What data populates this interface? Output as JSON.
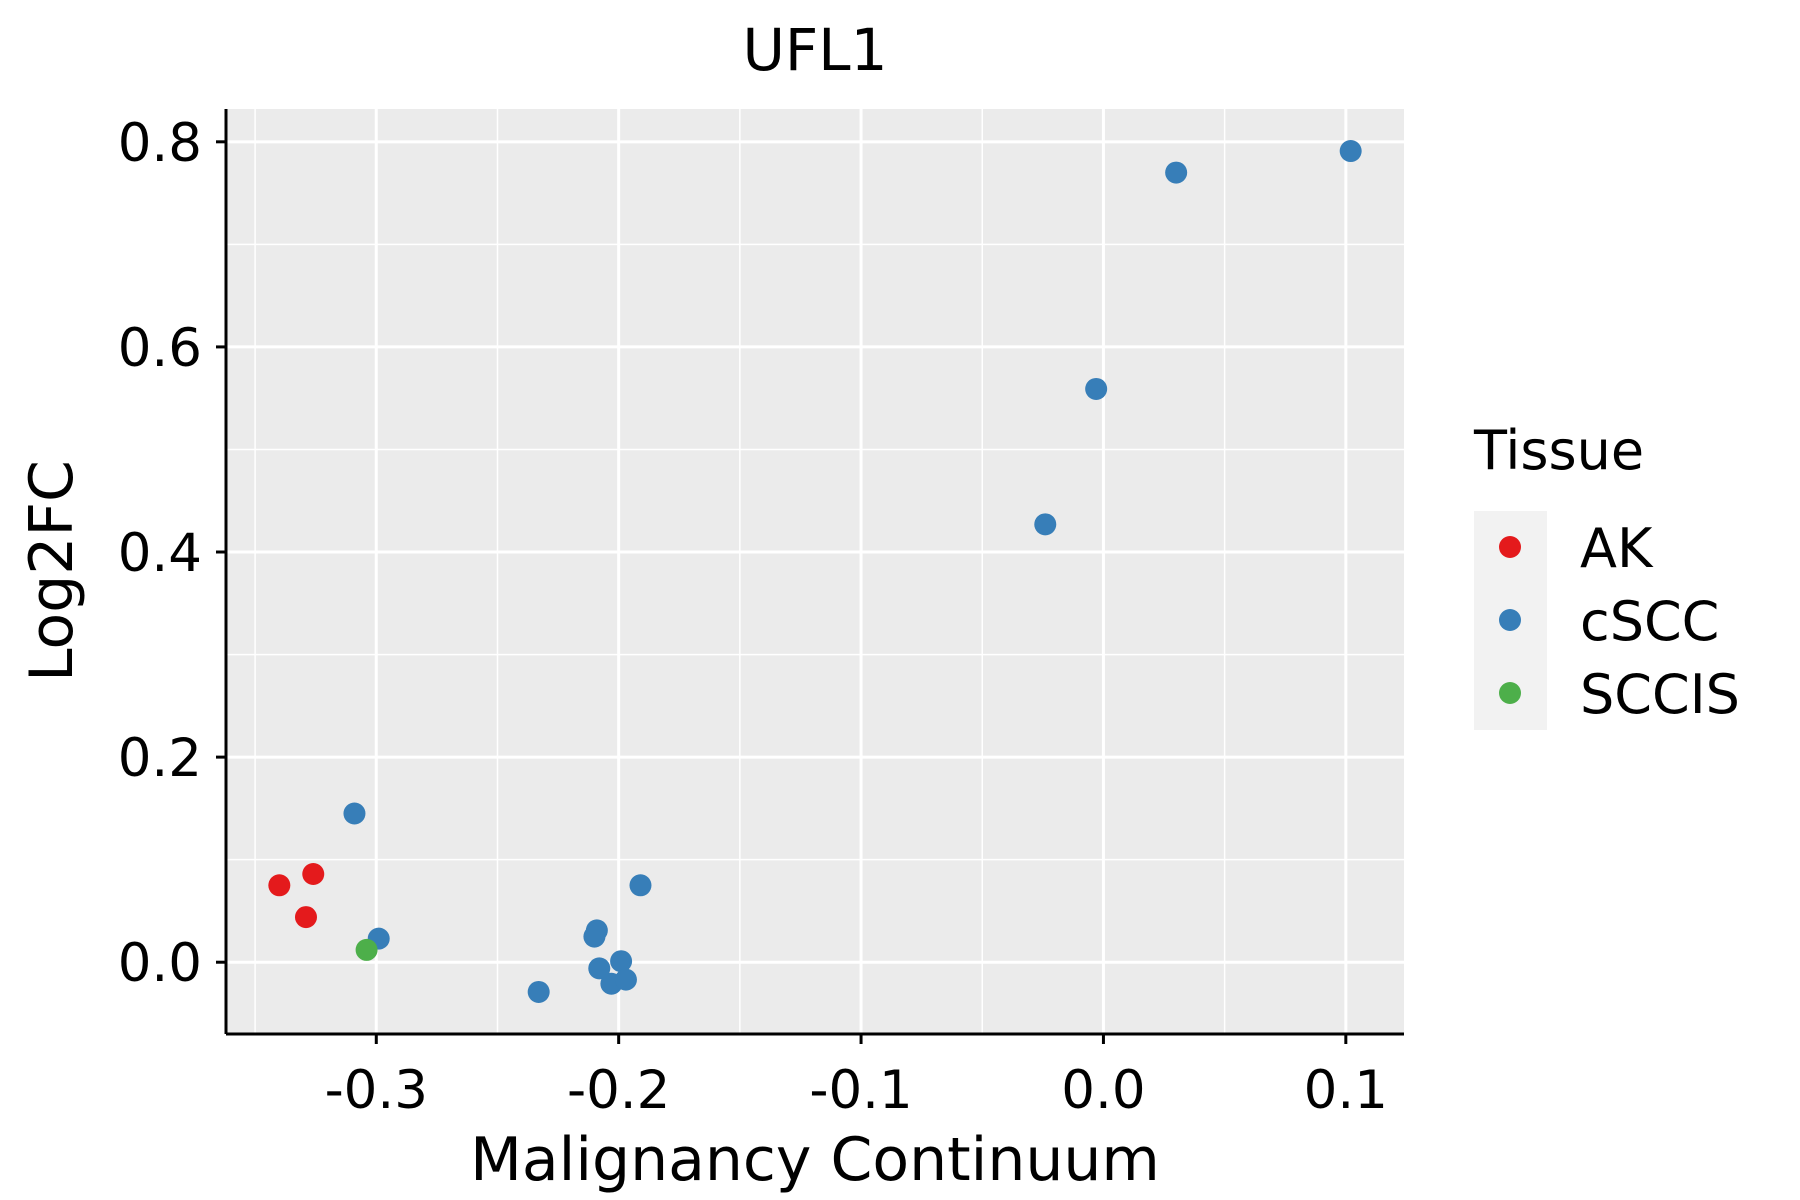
{
  "chart_data": {
    "type": "scatter",
    "title": "UFL1",
    "xlabel": "Malignancy Continuum",
    "ylabel": "Log2FC",
    "xlim": [
      -0.362,
      0.124
    ],
    "ylim": [
      -0.07,
      0.832
    ],
    "x_ticks": [
      -0.3,
      -0.2,
      -0.1,
      0.0,
      0.1
    ],
    "x_tick_labels": [
      "-0.3",
      "-0.2",
      "-0.1",
      "0.0",
      "0.1"
    ],
    "y_ticks": [
      0.0,
      0.2,
      0.4,
      0.6,
      0.8
    ],
    "y_tick_labels": [
      "0.0",
      "0.2",
      "0.4",
      "0.6",
      "0.8"
    ],
    "grid": true,
    "background": "#ebebeb",
    "legend": {
      "title": "Tissue",
      "position": "right",
      "entries": [
        {
          "label": "AK",
          "color": "#e41a1c"
        },
        {
          "label": "cSCC",
          "color": "#377eb8"
        },
        {
          "label": "SCCIS",
          "color": "#4daf4a"
        }
      ]
    },
    "series": [
      {
        "name": "AK",
        "color": "#e41a1c",
        "points": [
          {
            "x": -0.34,
            "y": 0.075
          },
          {
            "x": -0.326,
            "y": 0.086
          },
          {
            "x": -0.329,
            "y": 0.044
          }
        ]
      },
      {
        "name": "cSCC",
        "color": "#377eb8",
        "points": [
          {
            "x": -0.309,
            "y": 0.145
          },
          {
            "x": -0.299,
            "y": 0.023
          },
          {
            "x": -0.233,
            "y": -0.029
          },
          {
            "x": -0.209,
            "y": 0.031
          },
          {
            "x": -0.21,
            "y": 0.025
          },
          {
            "x": -0.208,
            "y": -0.006
          },
          {
            "x": -0.203,
            "y": -0.021
          },
          {
            "x": -0.199,
            "y": 0.001
          },
          {
            "x": -0.197,
            "y": -0.017
          },
          {
            "x": -0.191,
            "y": 0.075
          },
          {
            "x": -0.024,
            "y": 0.427
          },
          {
            "x": -0.003,
            "y": 0.559
          },
          {
            "x": 0.03,
            "y": 0.77
          },
          {
            "x": 0.102,
            "y": 0.791
          }
        ]
      },
      {
        "name": "SCCIS",
        "color": "#4daf4a",
        "points": [
          {
            "x": -0.304,
            "y": 0.012
          }
        ]
      }
    ]
  }
}
